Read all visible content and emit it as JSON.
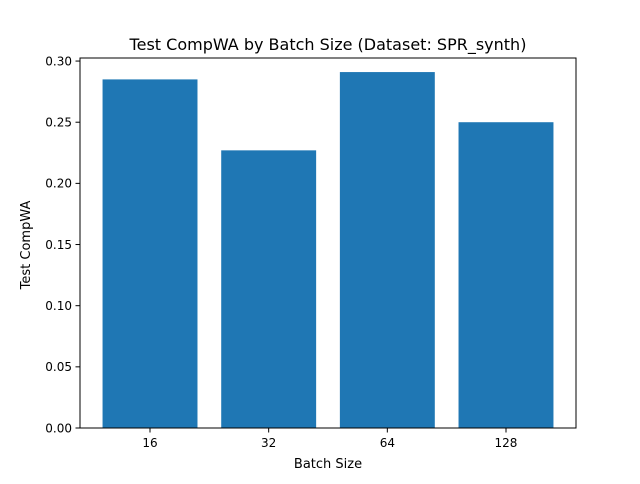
{
  "chart_data": {
    "type": "bar",
    "title": "Test CompWA by Batch Size (Dataset: SPR_synth)",
    "xlabel": "Batch Size",
    "ylabel": "Test CompWA",
    "categories": [
      "16",
      "32",
      "64",
      "128"
    ],
    "values": [
      0.285,
      0.227,
      0.291,
      0.25
    ],
    "ylim": [
      0,
      0.3
    ],
    "yticks": [
      "0.00",
      "0.05",
      "0.10",
      "0.15",
      "0.20",
      "0.25",
      "0.30"
    ],
    "ytick_values": [
      0,
      0.05,
      0.1,
      0.15,
      0.2,
      0.25,
      0.3
    ],
    "grid": false,
    "bar_color": "#1f77b4"
  }
}
